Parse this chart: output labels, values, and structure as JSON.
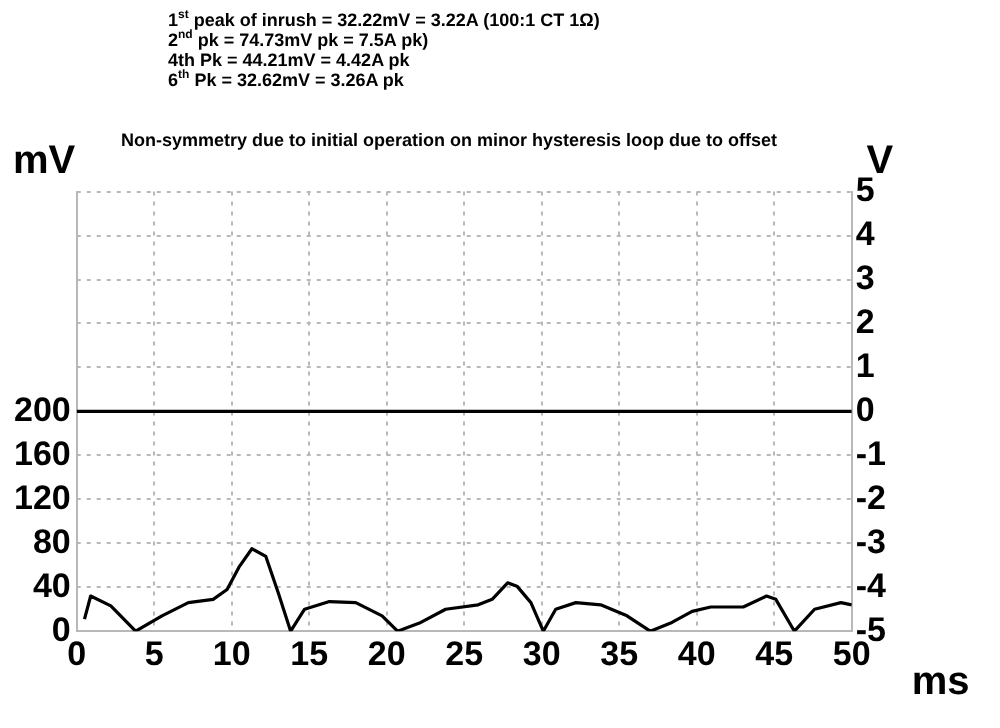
{
  "chart_data": {
    "type": "line",
    "title": "Non-symmetry due to initial operation on minor hysteresis loop due to offset",
    "annotations": [
      "1$^{st}$ peak of inrush = 32.22mV = 3.22A  (100:1 CT 1Ω)",
      "2$^{nd}$ pk = 74.73mV pk = 7.5A pk)",
      "4th Pk = 44.21mV = 4.42A pk",
      "6$^{th}$ Pk = 32.62mV = 3.26A pk"
    ],
    "ylabel": "mV",
    "y2label": "V",
    "xlabel": "ms",
    "xlim": [
      0,
      50
    ],
    "xticks": [
      0,
      5,
      10,
      15,
      20,
      25,
      30,
      35,
      40,
      45,
      50
    ],
    "ylim": [
      0,
      400
    ],
    "yticks": [
      0,
      40,
      80,
      120,
      160,
      200
    ],
    "y2lim": [
      -5,
      5
    ],
    "y2ticks": [
      -5,
      -4,
      -3,
      -2,
      -1,
      0,
      1,
      2,
      3,
      4,
      5
    ],
    "grid": true,
    "marker": "none",
    "line_style": "solid",
    "legend": false,
    "series": [
      {
        "color": "#000000",
        "x": [
          0.5,
          0.9,
          2.2,
          3.8,
          5.5,
          7.2,
          8.8,
          9.7,
          10.5,
          11.3,
          12.2,
          13,
          13.8,
          14.7,
          16.3,
          18,
          19.7,
          20.7,
          22.2,
          23.8,
          25.9,
          26.8,
          27.8,
          28.4,
          29.3,
          30.1,
          30.9,
          32.2,
          33.8,
          35.5,
          37,
          38.4,
          39.7,
          40.9,
          43,
          44.5,
          45.1,
          46.3,
          47.6,
          49.3,
          50
        ],
        "values": [
          11,
          32,
          23,
          0,
          14,
          26,
          29,
          38,
          59,
          75,
          68,
          35,
          0,
          20,
          27,
          26,
          14,
          0,
          8,
          20,
          24,
          29,
          44,
          41,
          26,
          0,
          20,
          26,
          24,
          14,
          0,
          8,
          18,
          22,
          22,
          32,
          29,
          0,
          20,
          26,
          24
        ]
      },
      {
        "axis": "y2",
        "color": "#000000",
        "x": [
          0,
          50
        ],
        "values": [
          0,
          0
        ]
      }
    ]
  }
}
